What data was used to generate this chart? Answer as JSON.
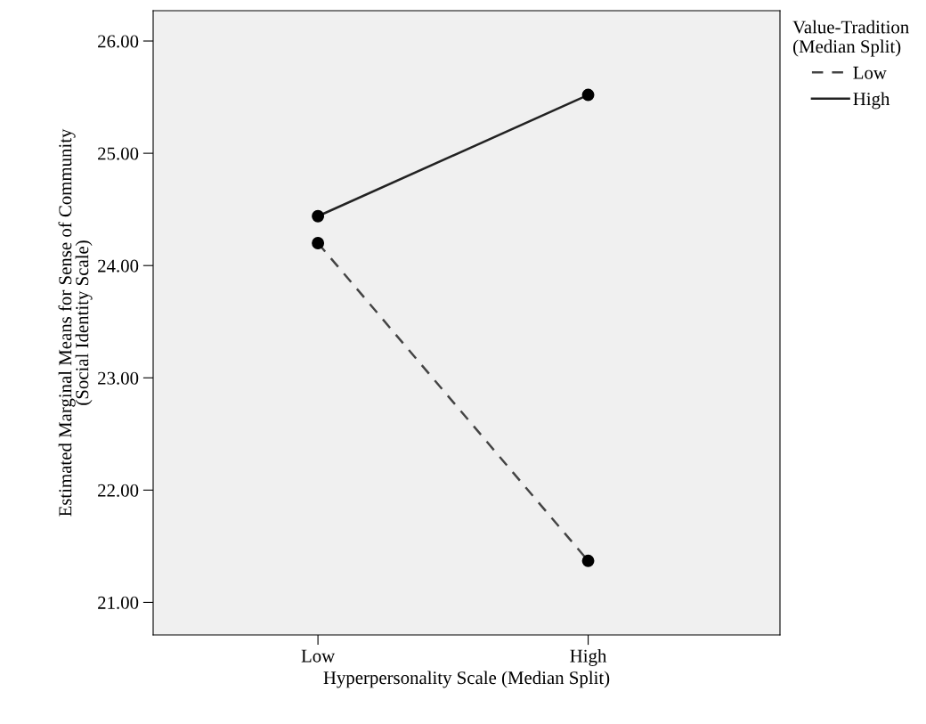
{
  "chart_data": {
    "type": "line",
    "xlabel": "Hyperpersonality Scale (Median Split)",
    "ylabel": "Estimated Marginal Means for Sense of Community\n(Social Identity Scale)",
    "legend_title": "Value-Tradition\n(Median Split)",
    "categories": [
      "Low",
      "High"
    ],
    "series": [
      {
        "name": "Low",
        "color": "#444444",
        "line_style": "dashed",
        "values": [
          24.2,
          21.37
        ]
      },
      {
        "name": "High",
        "color": "#222222",
        "line_style": "solid",
        "values": [
          24.44,
          25.52
        ]
      }
    ],
    "ylim": [
      20.71,
      26.27
    ],
    "yticks": [
      {
        "value": 21,
        "label": "21.00"
      },
      {
        "value": 22,
        "label": "22.00"
      },
      {
        "value": 23,
        "label": "23.00"
      },
      {
        "value": 24,
        "label": "24.00"
      },
      {
        "value": 25,
        "label": "25.00"
      },
      {
        "value": 26,
        "label": "26.00"
      }
    ],
    "marker": "circle",
    "legend": "top right",
    "grid": false
  }
}
